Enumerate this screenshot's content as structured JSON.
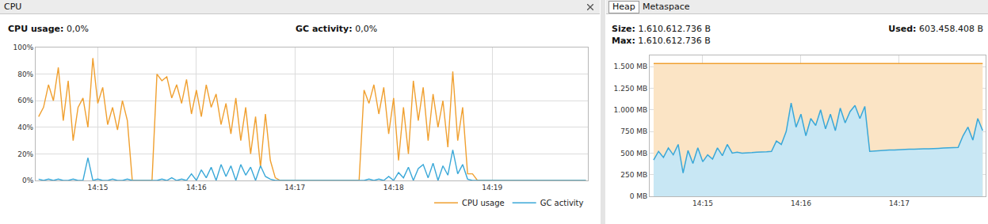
{
  "chart_data": [
    {
      "type": "line",
      "title": "CPU",
      "annotations": [
        "CPU usage: 0,0%",
        "GC activity: 0,0%"
      ],
      "x": [
        854.4,
        854.45,
        854.5,
        854.55,
        854.6,
        854.65,
        854.7,
        854.75,
        854.8,
        854.85,
        854.9,
        854.95,
        855,
        855.05,
        855.1,
        855.15,
        855.2,
        855.25,
        855.3,
        855.35,
        855.4,
        855.45,
        855.5,
        855.55,
        855.6,
        855.65,
        855.7,
        855.75,
        855.8,
        855.85,
        855.9,
        855.95,
        856,
        856.05,
        856.1,
        856.15,
        856.2,
        856.25,
        856.3,
        856.35,
        856.4,
        856.45,
        856.5,
        856.55,
        856.6,
        856.65,
        856.7,
        856.75,
        856.8,
        856.85,
        856.9,
        856.95,
        857,
        857.05,
        857.1,
        857.15,
        857.2,
        857.25,
        857.3,
        857.35,
        857.4,
        857.45,
        857.5,
        857.55,
        857.6,
        857.65,
        857.7,
        857.75,
        857.8,
        857.85,
        857.9,
        857.95,
        858,
        858.05,
        858.1,
        858.15,
        858.2,
        858.25,
        858.3,
        858.35,
        858.4,
        858.45,
        858.5,
        858.55,
        858.6,
        858.65,
        858.7,
        858.75,
        858.8,
        858.85,
        858.9,
        858.95,
        859,
        859.05,
        859.1,
        859.15,
        859.2,
        859.25,
        859.3,
        859.35,
        859.4,
        859.45,
        859.5,
        859.55,
        859.6,
        859.65,
        859.7,
        859.75,
        859.8,
        859.85,
        859.9,
        859.95
      ],
      "series": [
        {
          "name": "CPU usage",
          "color": "#f0a030",
          "values": [
            48,
            55,
            72,
            60,
            85,
            45,
            75,
            30,
            55,
            62,
            40,
            92,
            58,
            70,
            42,
            55,
            38,
            60,
            45,
            0,
            0,
            0,
            0,
            0,
            80,
            75,
            78,
            62,
            72,
            58,
            76,
            50,
            68,
            48,
            72,
            55,
            65,
            42,
            58,
            35,
            62,
            30,
            55,
            20,
            48,
            10,
            50,
            15,
            2,
            0,
            0,
            0,
            0,
            0,
            0,
            0,
            0,
            0,
            0,
            0,
            0,
            0,
            0,
            0,
            0,
            0,
            68,
            58,
            72,
            50,
            70,
            35,
            62,
            15,
            55,
            20,
            75,
            45,
            70,
            30,
            65,
            40,
            60,
            25,
            82,
            30,
            55,
            5,
            5,
            0,
            0,
            0,
            0,
            0,
            0,
            0,
            0,
            0,
            0,
            0,
            0,
            0,
            0,
            0,
            0,
            0,
            0,
            0,
            0,
            0,
            0,
            0
          ]
        },
        {
          "name": "GC activity",
          "color": "#3aa8d8",
          "values": [
            1,
            0,
            1,
            0,
            1,
            0,
            0,
            1,
            0,
            0,
            17,
            0,
            1,
            0,
            0,
            1,
            0,
            0,
            1,
            0,
            0,
            0,
            0,
            0,
            0,
            1,
            0,
            2,
            0,
            1,
            0,
            5,
            0,
            8,
            2,
            10,
            0,
            12,
            3,
            11,
            0,
            12,
            4,
            10,
            0,
            11,
            3,
            1,
            0,
            0,
            0,
            0,
            0,
            0,
            0,
            0,
            0,
            0,
            0,
            0,
            0,
            0,
            0,
            0,
            0,
            0,
            0,
            1,
            0,
            1,
            0,
            3,
            0,
            6,
            2,
            10,
            0,
            9,
            12,
            2,
            13,
            0,
            11,
            4,
            23,
            5,
            12,
            1,
            0,
            0,
            0,
            0,
            0,
            0,
            0,
            0,
            0,
            0,
            0,
            0,
            0,
            0,
            0,
            0,
            0,
            0,
            0,
            0,
            0,
            0,
            0,
            0
          ]
        }
      ],
      "xlim": [
        854.37,
        859.97
      ],
      "xticks": [
        {
          "value": 855,
          "label": "14:15"
        },
        {
          "value": 856,
          "label": "14:16"
        },
        {
          "value": 857,
          "label": "14:17"
        },
        {
          "value": 858,
          "label": "14:18"
        },
        {
          "value": 859,
          "label": "14:19"
        }
      ],
      "ylim": [
        0,
        100
      ],
      "yticks": [
        {
          "value": 0,
          "label": "0%"
        },
        {
          "value": 20,
          "label": "20%"
        },
        {
          "value": 40,
          "label": "40%"
        },
        {
          "value": 60,
          "label": "60%"
        },
        {
          "value": 80,
          "label": "80%"
        },
        {
          "value": 100,
          "label": "100%"
        }
      ],
      "grid": true,
      "legend": "lower right"
    },
    {
      "type": "area",
      "title": "Heap",
      "annotations": [
        "Metaspace",
        "Size: 1.610.612.736 B",
        "Max: 1.610.612.736 B",
        "Used: 603.458.408 B"
      ],
      "x": [
        854.5,
        854.55,
        854.6,
        854.65,
        854.7,
        854.75,
        854.8,
        854.85,
        854.9,
        854.95,
        855,
        855.05,
        855.1,
        855.15,
        855.2,
        855.25,
        855.3,
        855.35,
        855.4,
        855.45,
        855.5,
        855.55,
        855.6,
        855.65,
        855.7,
        855.75,
        855.8,
        855.85,
        855.9,
        855.95,
        856,
        856.05,
        856.1,
        856.15,
        856.2,
        856.25,
        856.3,
        856.35,
        856.4,
        856.45,
        856.5,
        856.55,
        856.6,
        856.65,
        856.7,
        856.75,
        856.8,
        856.85,
        856.9,
        856.95,
        857,
        857.05,
        857.1,
        857.15,
        857.2,
        857.25,
        857.3,
        857.35,
        857.4,
        857.45,
        857.5,
        857.55,
        857.6,
        857.65,
        857.7,
        857.75,
        857.8,
        857.85
      ],
      "series": [
        {
          "color": "#f0a030",
          "values": [
            1536,
            1536,
            1536,
            1536,
            1536,
            1536,
            1536,
            1536,
            1536,
            1536,
            1536,
            1536,
            1536,
            1536,
            1536,
            1536,
            1536,
            1536,
            1536,
            1536,
            1536,
            1536,
            1536,
            1536,
            1536,
            1536,
            1536,
            1536,
            1536,
            1536,
            1536,
            1536,
            1536,
            1536,
            1536,
            1536,
            1536,
            1536,
            1536,
            1536,
            1536,
            1536,
            1536,
            1536,
            1536,
            1536,
            1536,
            1536,
            1536,
            1536,
            1536,
            1536,
            1536,
            1536,
            1536,
            1536,
            1536,
            1536,
            1536,
            1536,
            1536,
            1536,
            1536,
            1536,
            1536,
            1536,
            1536,
            1536
          ]
        },
        {
          "color": "#3aa8d8",
          "values": [
            420,
            520,
            450,
            560,
            480,
            600,
            270,
            530,
            380,
            560,
            400,
            480,
            430,
            560,
            470,
            600,
            500,
            510,
            500,
            500,
            505,
            510,
            510,
            515,
            520,
            640,
            600,
            750,
            1080,
            800,
            950,
            700,
            900,
            820,
            1000,
            780,
            950,
            760,
            1020,
            850,
            980,
            1050,
            900,
            1040,
            520,
            525,
            530,
            530,
            535,
            535,
            540,
            540,
            545,
            545,
            550,
            550,
            550,
            555,
            555,
            558,
            560,
            560,
            565,
            700,
            800,
            650,
            900,
            760
          ]
        }
      ],
      "xlim": [
        854.46,
        857.88
      ],
      "xticks": [
        {
          "value": 855,
          "label": "14:15"
        },
        {
          "value": 856,
          "label": "14:16"
        },
        {
          "value": 857,
          "label": "14:17"
        }
      ],
      "ylim": [
        0,
        1630
      ],
      "yticks": [
        {
          "value": 0,
          "label": "0 MB"
        },
        {
          "value": 250,
          "label": "250 MB"
        },
        {
          "value": 500,
          "label": "500 MB"
        },
        {
          "value": 750,
          "label": "750 MB"
        },
        {
          "value": 1000,
          "label": "1.000 MB"
        },
        {
          "value": 1250,
          "label": "1.250 MB"
        },
        {
          "value": 1500,
          "label": "1.500 MB"
        }
      ],
      "grid": true
    }
  ]
}
